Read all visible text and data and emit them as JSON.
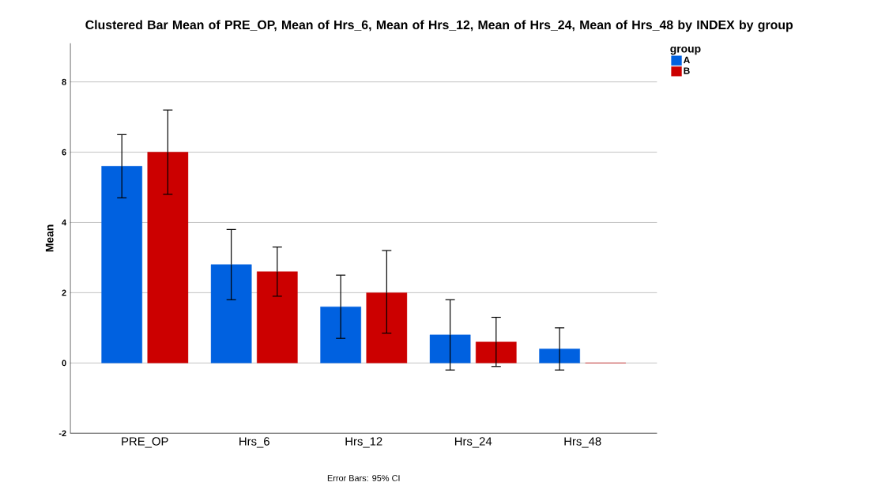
{
  "chart_data": {
    "type": "bar",
    "title": "Clustered Bar Mean of PRE_OP, Mean of Hrs_6, Mean of Hrs_12, Mean of Hrs_24, Mean of Hrs_48 by INDEX by group",
    "xlabel": null,
    "ylabel": "Mean",
    "legend_title": "group",
    "annotations": [
      "Error Bars: 95% CI"
    ],
    "categories": [
      "PRE_OP",
      "Hrs_6",
      "Hrs_12",
      "Hrs_24",
      "Hrs_48"
    ],
    "series": [
      {
        "name": "A",
        "color": "#0061e0",
        "values": [
          5.6,
          2.8,
          1.6,
          0.8,
          0.4
        ],
        "errors": [
          [
            4.7,
            6.5
          ],
          [
            1.8,
            3.8
          ],
          [
            0.7,
            2.5
          ],
          [
            -0.2,
            1.8
          ],
          [
            -0.2,
            1.0
          ]
        ]
      },
      {
        "name": "B",
        "color": "#cc0000",
        "values": [
          6.0,
          2.6,
          2.0,
          0.6,
          0.0
        ],
        "errors": [
          [
            4.8,
            7.2
          ],
          [
            1.9,
            3.3
          ],
          [
            0.85,
            3.2
          ],
          [
            -0.1,
            1.3
          ],
          null
        ]
      }
    ],
    "ylim": [
      -2,
      9.1
    ],
    "yticks": [
      -2,
      0,
      2,
      4,
      6,
      8
    ],
    "grid": "y",
    "legend": "top right"
  }
}
